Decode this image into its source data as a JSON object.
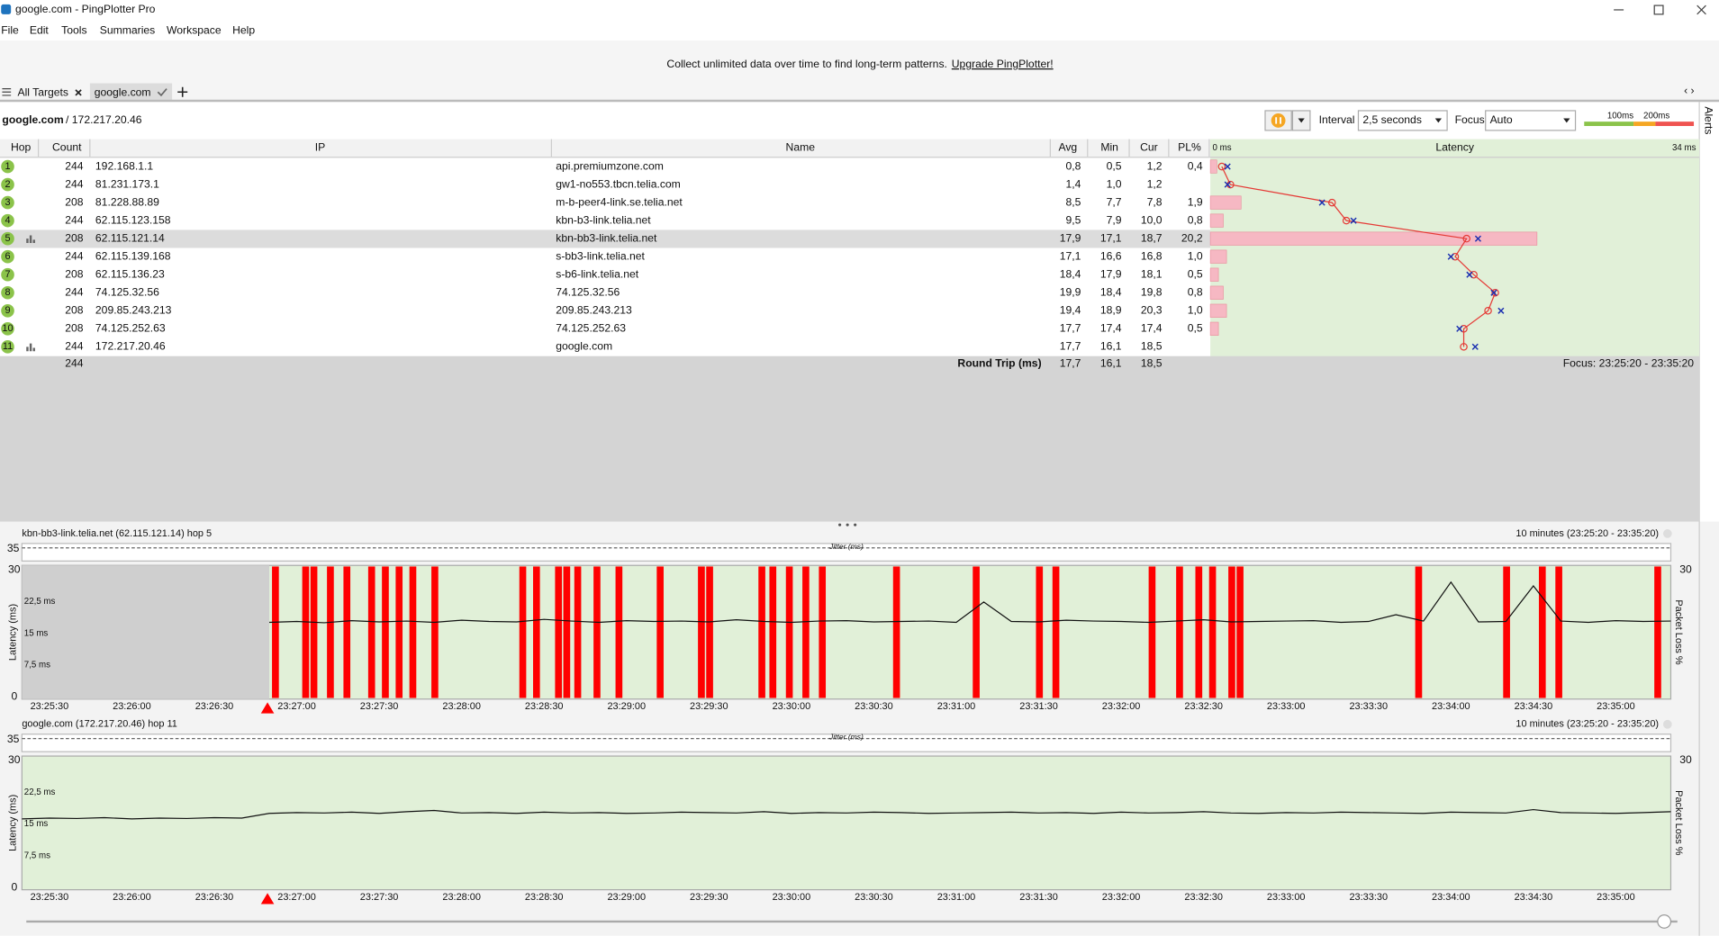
{
  "window": {
    "title": "google.com - PingPlotter Pro"
  },
  "menu": [
    "File",
    "Edit",
    "Tools",
    "Summaries",
    "Workspace",
    "Help"
  ],
  "banner": {
    "text": "Collect unlimited data over time to find long-term patterns.",
    "link": "Upgrade PingPlotter!"
  },
  "tabs": [
    "All Targets",
    "google.com"
  ],
  "target": {
    "host": "google.com",
    "ip": "/ 172.217.20.46"
  },
  "toolbar": {
    "interval_label": "Interval",
    "interval": "2,5 seconds",
    "focus_label": "Focus",
    "focus": "Auto",
    "legend": [
      "100ms",
      "200ms"
    ]
  },
  "side": "Alerts",
  "table": {
    "columns": [
      "Hop",
      "Count",
      "IP",
      "Name",
      "Avg",
      "Min",
      "Cur",
      "PL%",
      "Latency"
    ],
    "latency_scale": [
      "0 ms",
      "34 ms"
    ],
    "rows": [
      [
        "1",
        "244",
        "192.168.1.1",
        "api.premiumzone.com",
        "0,8",
        "0,5",
        "1,2",
        "0,4"
      ],
      [
        "2",
        "244",
        "81.231.173.1",
        "gw1-no553.tbcn.telia.com",
        "1,4",
        "1,0",
        "1,2",
        null
      ],
      [
        "3",
        "208",
        "81.228.88.89",
        "m-b-peer4-link.se.telia.net",
        "8,5",
        "7,7",
        "7,8",
        "1,9"
      ],
      [
        "4",
        "244",
        "62.115.123.158",
        "kbn-b3-link.telia.net",
        "9,5",
        "7,9",
        "10,0",
        "0,8"
      ],
      [
        "5",
        "208",
        "62.115.121.14",
        "kbn-bb3-link.telia.net",
        "17,9",
        "17,1",
        "18,7",
        "20,2"
      ],
      [
        "6",
        "244",
        "62.115.139.168",
        "s-bb3-link.telia.net",
        "17,1",
        "16,6",
        "16,8",
        "1,0"
      ],
      [
        "7",
        "208",
        "62.115.136.23",
        "s-b6-link.telia.net",
        "18,4",
        "17,9",
        "18,1",
        "0,5"
      ],
      [
        "8",
        "244",
        "74.125.32.56",
        "74.125.32.56",
        "19,9",
        "18,4",
        "19,8",
        "0,8"
      ],
      [
        "9",
        "208",
        "209.85.243.213",
        "209.85.243.213",
        "19,4",
        "18,9",
        "20,3",
        "1,0"
      ],
      [
        "10",
        "208",
        "74.125.252.63",
        "74.125.252.63",
        "17,7",
        "17,4",
        "17,4",
        "0,5"
      ],
      [
        "11",
        "244",
        "172.217.20.46",
        "google.com",
        "17,7",
        "16,1",
        "18,5",
        null
      ]
    ],
    "summary": {
      "count": "244",
      "label": "Round Trip (ms)",
      "avg": "17,7",
      "min": "16,1",
      "cur": "18,5",
      "focus": "Focus: 23:25:20 - 23:35:20"
    }
  },
  "graphs": [
    {
      "title": "kbn-bb3-link.telia.net (62.115.121.14) hop 5",
      "range": "10 minutes (23:25:20 - 23:35:20)",
      "jitter_label": "Jitter (ms)",
      "jitter_ticks": [
        35
      ],
      "y_label": "Latency (ms)",
      "y2_label": "Packet Loss %",
      "ylim": [
        0,
        30
      ],
      "yticks": [
        0,
        {
          "value": 7.5,
          "label": "7,5 ms"
        },
        {
          "value": 15,
          "label": "15 ms"
        },
        {
          "value": 22.5,
          "label": "22,5 ms"
        },
        30
      ],
      "y2ticks": [
        30
      ],
      "xlim": [
        "23:25:20",
        "23:35:20"
      ],
      "xticks": [
        "23:25:30",
        "23:26:00",
        "23:26:30",
        "23:27:00",
        "23:27:30",
        "23:28:00",
        "23:28:30",
        "23:29:00",
        "23:29:30",
        "23:30:00",
        "23:30:30",
        "23:31:00",
        "23:31:30",
        "23:32:00",
        "23:32:30",
        "23:33:00",
        "23:33:30",
        "23:34:00",
        "23:34:30",
        "23:35:00"
      ],
      "latency": [
        null,
        null,
        null,
        null,
        null,
        null,
        null,
        null,
        null,
        17.6,
        17.8,
        17.5,
        18.0,
        17.7,
        17.9,
        17.6,
        18.1,
        17.8,
        17.7,
        18.3,
        17.9,
        17.6,
        18.0,
        17.8,
        17.9,
        17.7,
        18.2,
        17.8,
        17.6,
        17.9,
        18.0,
        17.7,
        17.8,
        17.9,
        17.6,
        22.4,
        17.8,
        17.7,
        18.1,
        17.9,
        17.8,
        17.6,
        17.9,
        18.2,
        17.7,
        17.8,
        17.9,
        18.0,
        17.6,
        17.8,
        19.4,
        17.9,
        27.1,
        17.7,
        17.8,
        26.2,
        17.9,
        17.6,
        18.0,
        17.8,
        17.9
      ],
      "loss_events": [
        "23:26:51",
        "23:27:02",
        "23:27:05",
        "23:27:11",
        "23:27:17",
        "23:27:26",
        "23:27:31",
        "23:27:36",
        "23:27:41",
        "23:27:49",
        "23:28:21",
        "23:28:26",
        "23:28:34",
        "23:28:37",
        "23:28:41",
        "23:28:48",
        "23:28:56",
        "23:29:11",
        "23:29:26",
        "23:29:29",
        "23:29:48",
        "23:29:52",
        "23:29:58",
        "23:30:04",
        "23:30:10",
        "23:30:37",
        "23:31:06",
        "23:31:29",
        "23:31:35",
        "23:32:10",
        "23:32:20",
        "23:32:27",
        "23:32:32",
        "23:32:39",
        "23:32:42",
        "23:33:47",
        "23:34:19",
        "23:34:32",
        "23:34:38",
        "23:35:14"
      ]
    },
    {
      "title": "google.com (172.217.20.46) hop 11",
      "range": "10 minutes (23:25:20 - 23:35:20)",
      "jitter_label": "Jitter (ms)",
      "jitter_ticks": [
        35
      ],
      "y_label": "Latency (ms)",
      "y2_label": "Packet Loss %",
      "ylim": [
        0,
        30
      ],
      "yticks": [
        0,
        {
          "value": 7.5,
          "label": "7,5 ms"
        },
        {
          "value": 15,
          "label": "15 ms"
        },
        {
          "value": 22.5,
          "label": "22,5 ms"
        },
        30
      ],
      "y2ticks": [
        30
      ],
      "xlim": [
        "23:25:20",
        "23:35:20"
      ],
      "xticks": [
        "23:25:30",
        "23:26:00",
        "23:26:30",
        "23:27:00",
        "23:27:30",
        "23:28:00",
        "23:28:30",
        "23:29:00",
        "23:29:30",
        "23:30:00",
        "23:30:30",
        "23:31:00",
        "23:31:30",
        "23:32:00",
        "23:32:30",
        "23:33:00",
        "23:33:30",
        "23:34:00",
        "23:34:30",
        "23:35:00"
      ],
      "latency": [
        16.2,
        16.4,
        16.3,
        16.5,
        16.2,
        16.4,
        16.3,
        16.5,
        16.4,
        17.5,
        17.7,
        17.6,
        17.8,
        17.5,
        17.9,
        18.2,
        17.6,
        17.7,
        17.5,
        17.8,
        17.6,
        17.7,
        17.5,
        17.6,
        17.8,
        17.7,
        17.6,
        17.9,
        17.5,
        17.7,
        17.6,
        17.8,
        17.7,
        17.5,
        17.6,
        17.7,
        17.8,
        17.6,
        17.7,
        17.5,
        17.8,
        17.6,
        17.7,
        17.9,
        17.6,
        17.5,
        17.7,
        17.6,
        17.8,
        17.7,
        17.6,
        17.5,
        17.8,
        17.7,
        17.6,
        18.4,
        17.7,
        17.6,
        17.5,
        17.7,
        17.9
      ],
      "loss_events": []
    }
  ]
}
